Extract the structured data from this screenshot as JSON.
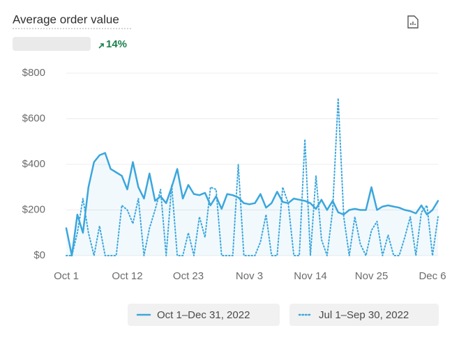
{
  "chart_data": {
    "type": "line",
    "title": "Average order value",
    "change": "14%",
    "categories": [
      "Oct 1",
      null,
      null,
      null,
      null,
      null,
      null,
      null,
      null,
      null,
      null,
      "Oct 12",
      null,
      null,
      null,
      null,
      null,
      null,
      null,
      null,
      null,
      null,
      "Oct 23",
      null,
      null,
      null,
      null,
      null,
      null,
      null,
      null,
      null,
      null,
      "Nov 3",
      null,
      null,
      null,
      null,
      null,
      null,
      null,
      null,
      null,
      null,
      "Nov 14",
      null,
      null,
      null,
      null,
      null,
      null,
      null,
      null,
      null,
      null,
      "Nov 25",
      null,
      null,
      null,
      null,
      null,
      null,
      null,
      null,
      null,
      null,
      "Dec 6",
      null
    ],
    "series": [
      {
        "name": "Oct 1–Dec 31, 2022",
        "color": "#3ba6dc",
        "style": "solid",
        "values": [
          120,
          0,
          180,
          100,
          300,
          410,
          440,
          450,
          380,
          365,
          350,
          290,
          410,
          300,
          250,
          360,
          240,
          260,
          230,
          300,
          380,
          250,
          310,
          270,
          265,
          275,
          220,
          260,
          205,
          270,
          265,
          255,
          230,
          225,
          230,
          270,
          210,
          230,
          280,
          235,
          230,
          250,
          245,
          240,
          230,
          205,
          245,
          200,
          240,
          190,
          180,
          200,
          205,
          200,
          200,
          300,
          200,
          215,
          220,
          215,
          210,
          200,
          195,
          185,
          220,
          180,
          200,
          240
        ]
      },
      {
        "name": "Jul 1–Sep 30, 2022",
        "color": "#3ba6dc",
        "style": "dotted",
        "values": [
          0,
          0,
          100,
          250,
          100,
          0,
          130,
          0,
          0,
          0,
          220,
          200,
          140,
          250,
          0,
          120,
          200,
          290,
          0,
          310,
          0,
          0,
          100,
          0,
          170,
          80,
          300,
          290,
          0,
          0,
          0,
          400,
          0,
          0,
          0,
          60,
          180,
          0,
          0,
          300,
          230,
          0,
          0,
          510,
          0,
          350,
          70,
          0,
          200,
          690,
          170,
          0,
          170,
          50,
          0,
          110,
          150,
          0,
          90,
          0,
          0,
          80,
          170,
          0,
          190,
          220,
          0,
          170
        ]
      }
    ],
    "ylim": [
      0,
      800
    ],
    "yticks": [
      {
        "value": 0,
        "label": "$0"
      },
      {
        "value": 200,
        "label": "$200"
      },
      {
        "value": 400,
        "label": "$400"
      },
      {
        "value": 600,
        "label": "$600"
      },
      {
        "value": 800,
        "label": "$800"
      }
    ],
    "grid": true
  }
}
